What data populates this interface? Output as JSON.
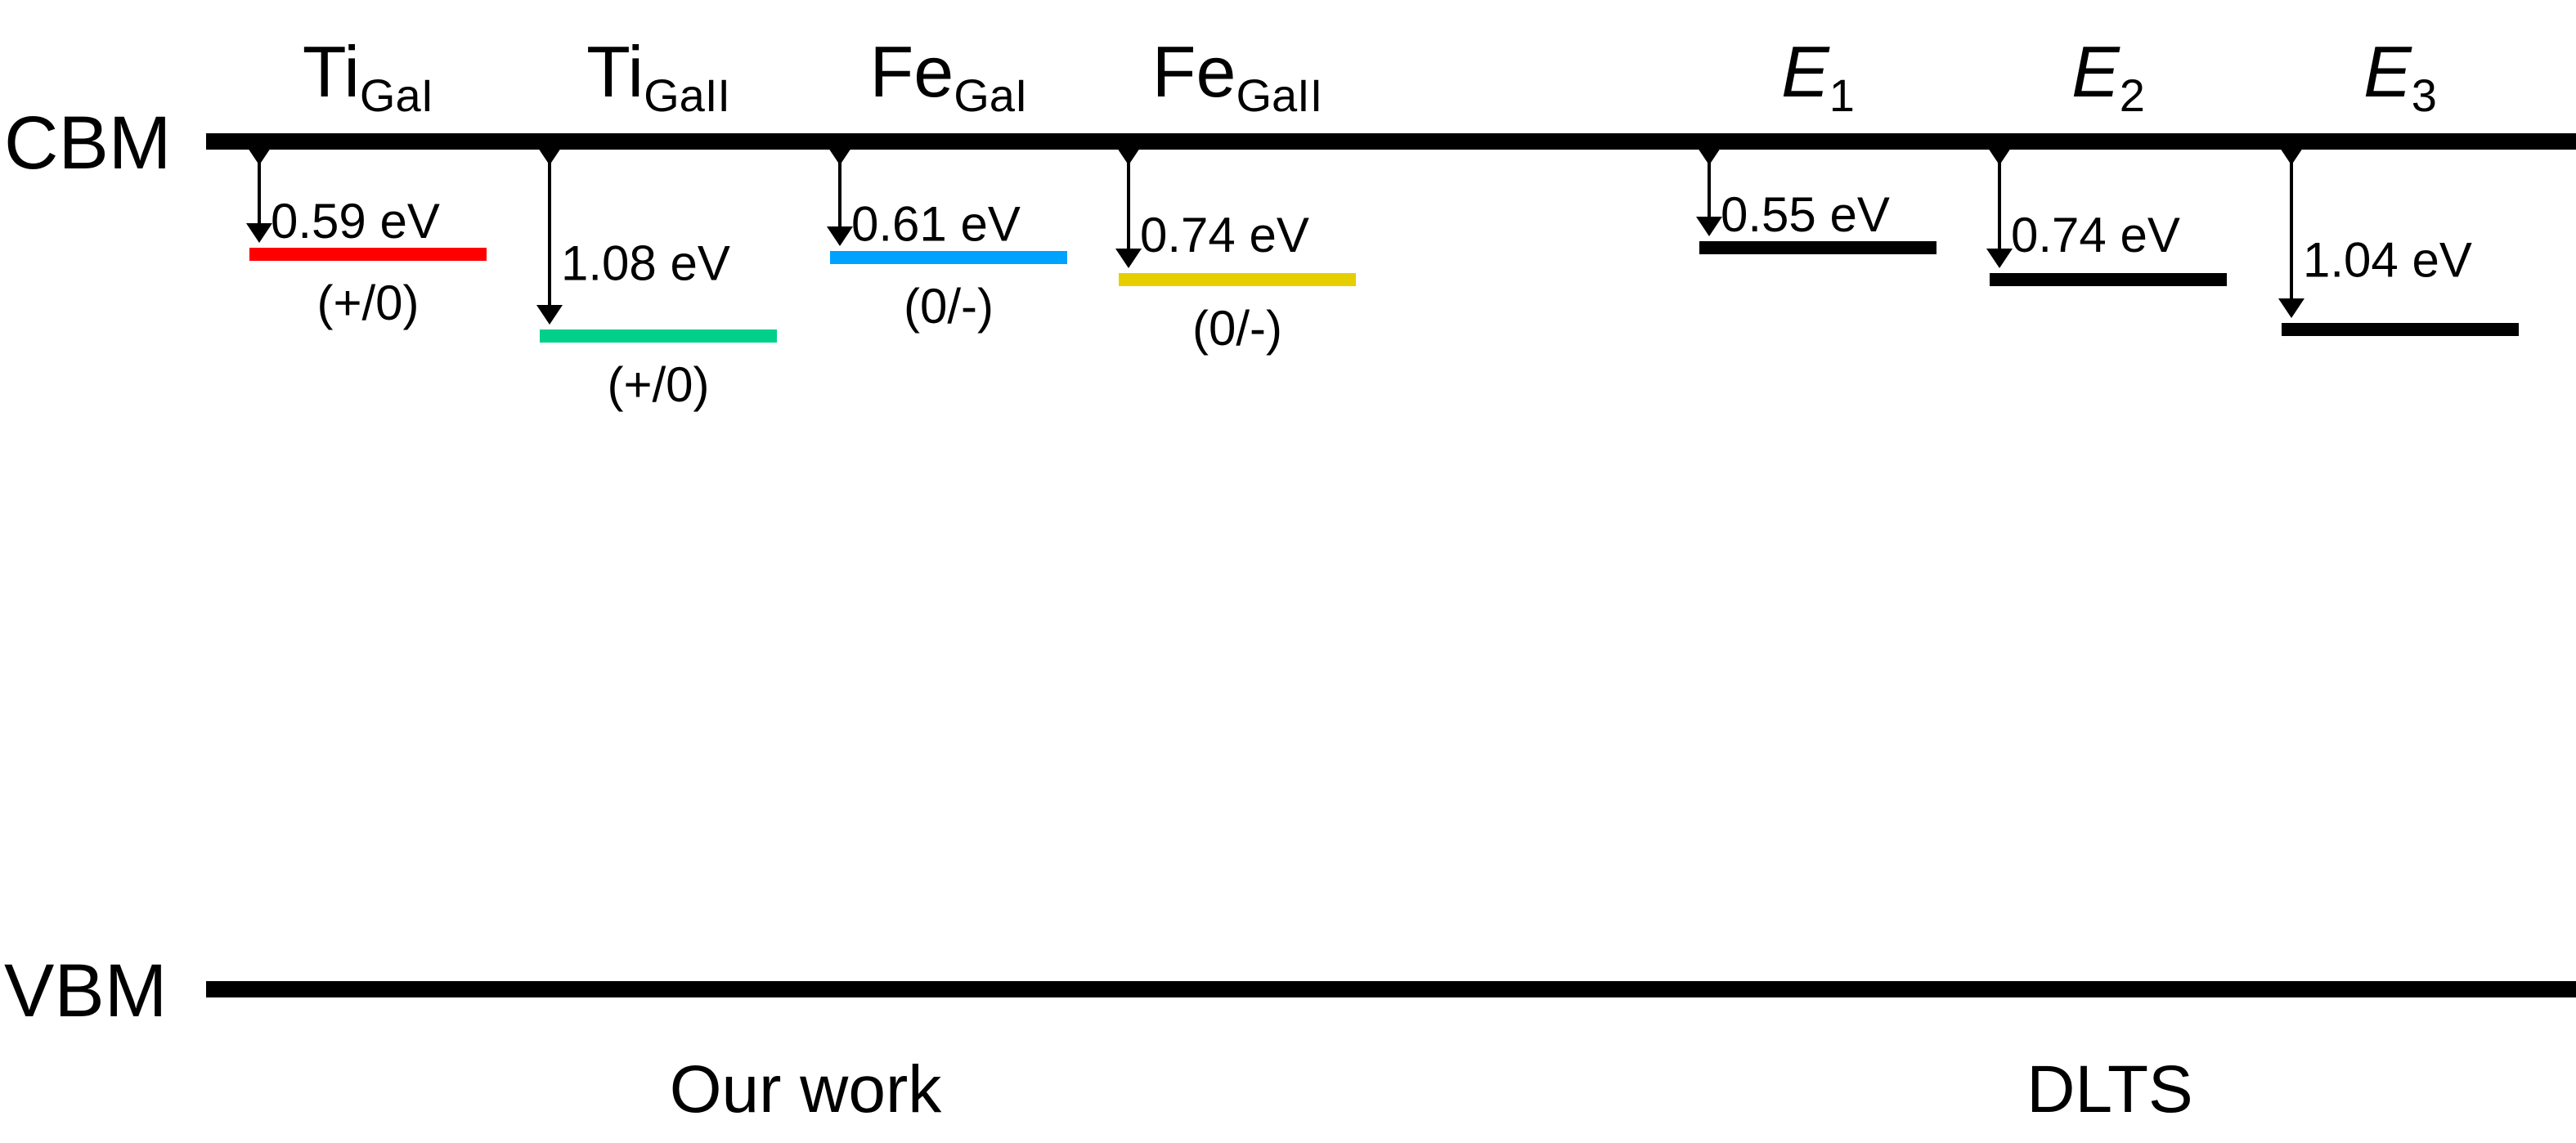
{
  "bands": {
    "cbm": "CBM",
    "vbm": "VBM"
  },
  "groups": {
    "ours": "Our work",
    "dlts": "DLTS"
  },
  "levels": [
    {
      "base": "Ti",
      "sub": "GaI",
      "italic": false,
      "energy": 0.59,
      "energy_label": "0.59 eV",
      "charge": "(+/0)",
      "color": "#ff0000",
      "group": "ours"
    },
    {
      "base": "Ti",
      "sub": "GaII",
      "italic": false,
      "energy": 1.08,
      "energy_label": "1.08 eV",
      "charge": "(+/0)",
      "color": "#00d08a",
      "group": "ours"
    },
    {
      "base": "Fe",
      "sub": "GaI",
      "italic": false,
      "energy": 0.61,
      "energy_label": "0.61 eV",
      "charge": "(0/-)",
      "color": "#00a2ff",
      "group": "ours"
    },
    {
      "base": "Fe",
      "sub": "GaII",
      "italic": false,
      "energy": 0.74,
      "energy_label": "0.74 eV",
      "charge": "(0/-)",
      "color": "#e6cf00",
      "group": "ours"
    },
    {
      "base": "E",
      "sub": "1",
      "italic": true,
      "energy": 0.55,
      "energy_label": "0.55 eV",
      "charge": null,
      "color": "#000000",
      "group": "dlts"
    },
    {
      "base": "E",
      "sub": "2",
      "italic": true,
      "energy": 0.74,
      "energy_label": "0.74 eV",
      "charge": null,
      "color": "#000000",
      "group": "dlts"
    },
    {
      "base": "E",
      "sub": "3",
      "italic": true,
      "energy": 1.04,
      "energy_label": "1.04 eV",
      "charge": null,
      "color": "#000000",
      "group": "dlts"
    }
  ]
}
